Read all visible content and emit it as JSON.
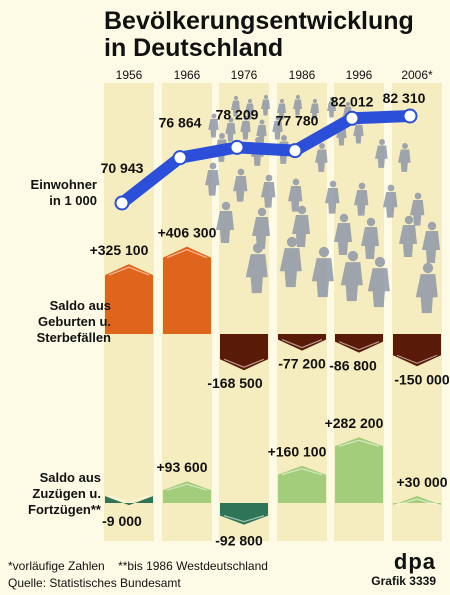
{
  "title_line1": "Bevölkerungsentwicklung",
  "title_line2": "in Deutschland",
  "years": [
    "1956",
    "1966",
    "1976",
    "1986",
    "1996",
    "2006*"
  ],
  "sections": {
    "population": "Einwohner\nin 1 000",
    "births": "Saldo aus\nGeburten u.\nSterbefällen",
    "migration": "Saldo aus\nZuzügen u.\nFortzügen**"
  },
  "chart_data": [
    {
      "type": "line",
      "x": [
        "1956",
        "1966",
        "1976",
        "1986",
        "1996",
        "2006*"
      ],
      "series": [
        {
          "values": [
            70943,
            76864,
            78209,
            77780,
            82012,
            82310
          ],
          "labels": [
            "70 943",
            "76 864",
            "78 209",
            "77 780",
            "82 012",
            "82 310"
          ]
        }
      ],
      "ylabel": "Einwohner in 1 000",
      "color": "#2b4fd8"
    },
    {
      "type": "bar",
      "categories": [
        "1956",
        "1966",
        "1976",
        "1986",
        "1996",
        "2006*"
      ],
      "values": [
        325100,
        406300,
        -168500,
        -77200,
        -86800,
        -150000
      ],
      "labels": [
        "+325 100",
        "+406 300",
        "-168 500",
        "-77 200",
        "-86 800",
        "-150 000"
      ],
      "ylabel": "Saldo aus Geburten u. Sterbefällen",
      "colors": {
        "positive": "#e0651c",
        "negative": "#5a1a08"
      }
    },
    {
      "type": "bar",
      "categories": [
        "1956",
        "1966",
        "1976",
        "1986",
        "1996",
        "2006*"
      ],
      "values": [
        -9000,
        93600,
        -92800,
        160100,
        282200,
        30000
      ],
      "labels": [
        "-9 000",
        "+93 600",
        "-92 800",
        "+160 100",
        "+282 200",
        "+30 000"
      ],
      "ylabel": "Saldo aus Zuzügen u. Fortzügen**",
      "colors": {
        "positive": "#a3cd7a",
        "negative": "#2e7558"
      }
    }
  ],
  "footnote": "*vorläufige Zahlen    **bis 1986 Westdeutschland",
  "source": "Quelle: Statistisches Bundesamt",
  "brand": "dpa",
  "brand_sub": "Grafik 3339"
}
